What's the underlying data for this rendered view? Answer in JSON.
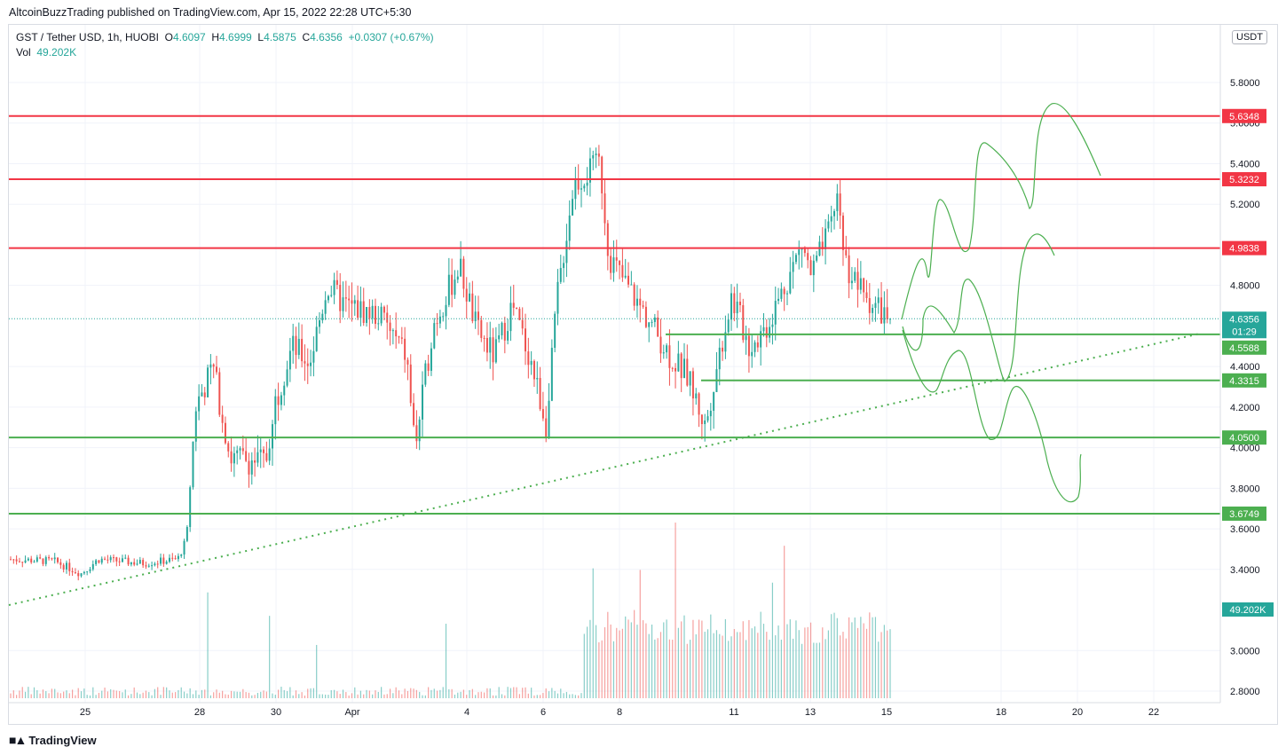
{
  "header": {
    "published_text": "AltcoinBuzzTrading published on TradingView.com, Apr 15, 2022 22:28 UTC+5:30"
  },
  "legend": {
    "symbol": "GST / Tether USD, 1h, HUOBI",
    "o_label": "O",
    "o_value": "4.6097",
    "h_label": "H",
    "h_value": "4.6999",
    "l_label": "L",
    "l_value": "4.5875",
    "c_label": "C",
    "c_value": "4.6356",
    "change": "+0.0307 (+0.67%)",
    "vol_label": "Vol",
    "vol_value": "49.202K"
  },
  "currency_badge": "USDT",
  "brand": {
    "name": "TradingView",
    "icon": "tradingview-logo-icon"
  },
  "colors": {
    "up": "#26a69a",
    "down": "#ef5350",
    "resistance": "#f23645",
    "support": "#4caf50",
    "drawing": "#4caf50",
    "grid": "#f0f3fa",
    "text": "#131722"
  },
  "chart_data": {
    "type": "candlestick",
    "symbol": "GST / Tether USD",
    "interval": "1h",
    "exchange": "HUOBI",
    "ohlc_last": {
      "open": 4.6097,
      "high": 4.6999,
      "low": 4.5875,
      "close": 4.6356,
      "change": 0.0307,
      "change_pct": 0.67
    },
    "volume_last": "49.202K",
    "y_axis": {
      "range": [
        2.75,
        6.0
      ],
      "ticks": [
        "5.8000",
        "5.6000",
        "5.4000",
        "5.2000",
        "4.8000",
        "4.4000",
        "4.2000",
        "4.0000",
        "3.8000",
        "3.6000",
        "3.4000",
        "3.0000",
        "2.8000"
      ]
    },
    "x_axis": {
      "ticks": [
        "25",
        "28",
        "30",
        "Apr",
        "4",
        "6",
        "8",
        "11",
        "13",
        "15",
        "18",
        "20",
        "22"
      ]
    },
    "price_badges": {
      "last_price": "4.6356",
      "countdown": "01:29",
      "volume": "49.202K"
    },
    "horizontal_levels": [
      {
        "value": 5.6348,
        "label": "5.6348",
        "kind": "resistance"
      },
      {
        "value": 5.3232,
        "label": "5.3232",
        "kind": "resistance"
      },
      {
        "value": 4.9838,
        "label": "4.9838",
        "kind": "resistance"
      },
      {
        "value": 4.5588,
        "label": "4.5588",
        "kind": "support"
      },
      {
        "value": 4.3315,
        "label": "4.3315",
        "kind": "support"
      },
      {
        "value": 4.05,
        "label": "4.0500",
        "kind": "support"
      },
      {
        "value": 3.6749,
        "label": "3.6749",
        "kind": "support"
      }
    ],
    "trendline": {
      "style": "dotted",
      "from": {
        "date": "Mar 23",
        "price": 3.23
      },
      "to": {
        "date": "Apr 23",
        "price": 4.56
      }
    },
    "price_path_anchors": [
      {
        "t": 0,
        "p": 3.45
      },
      {
        "t": 0.05,
        "p": 3.44
      },
      {
        "t": 0.08,
        "p": 3.38
      },
      {
        "t": 0.1,
        "p": 3.45
      },
      {
        "t": 0.15,
        "p": 3.43
      },
      {
        "t": 0.19,
        "p": 3.45
      },
      {
        "t": 0.2,
        "p": 3.55
      },
      {
        "t": 0.21,
        "p": 4.2
      },
      {
        "t": 0.23,
        "p": 4.4
      },
      {
        "t": 0.25,
        "p": 3.95
      },
      {
        "t": 0.29,
        "p": 3.93
      },
      {
        "t": 0.3,
        "p": 4.22
      },
      {
        "t": 0.32,
        "p": 4.5
      },
      {
        "t": 0.34,
        "p": 4.42
      },
      {
        "t": 0.36,
        "p": 4.8
      },
      {
        "t": 0.38,
        "p": 4.7
      },
      {
        "t": 0.42,
        "p": 4.65
      },
      {
        "t": 0.45,
        "p": 4.45
      },
      {
        "t": 0.46,
        "p": 4.0
      },
      {
        "t": 0.48,
        "p": 4.6
      },
      {
        "t": 0.51,
        "p": 4.9
      },
      {
        "t": 0.53,
        "p": 4.58
      },
      {
        "t": 0.55,
        "p": 4.45
      },
      {
        "t": 0.57,
        "p": 4.7
      },
      {
        "t": 0.59,
        "p": 4.45
      },
      {
        "t": 0.61,
        "p": 4.1
      },
      {
        "t": 0.62,
        "p": 4.7
      },
      {
        "t": 0.64,
        "p": 5.3
      },
      {
        "t": 0.67,
        "p": 5.4
      },
      {
        "t": 0.68,
        "p": 4.95
      },
      {
        "t": 0.7,
        "p": 4.8
      },
      {
        "t": 0.73,
        "p": 4.6
      },
      {
        "t": 0.75,
        "p": 4.45
      },
      {
        "t": 0.77,
        "p": 4.35
      },
      {
        "t": 0.79,
        "p": 4.1
      },
      {
        "t": 0.8,
        "p": 4.35
      },
      {
        "t": 0.82,
        "p": 4.75
      },
      {
        "t": 0.84,
        "p": 4.5
      },
      {
        "t": 0.86,
        "p": 4.6
      },
      {
        "t": 0.88,
        "p": 4.8
      },
      {
        "t": 0.9,
        "p": 5.0
      },
      {
        "t": 0.91,
        "p": 4.85
      },
      {
        "t": 0.93,
        "p": 5.05
      },
      {
        "t": 0.94,
        "p": 5.25
      },
      {
        "t": 0.95,
        "p": 4.9
      },
      {
        "t": 0.97,
        "p": 4.75
      },
      {
        "t": 1.0,
        "p": 4.6356
      }
    ]
  }
}
